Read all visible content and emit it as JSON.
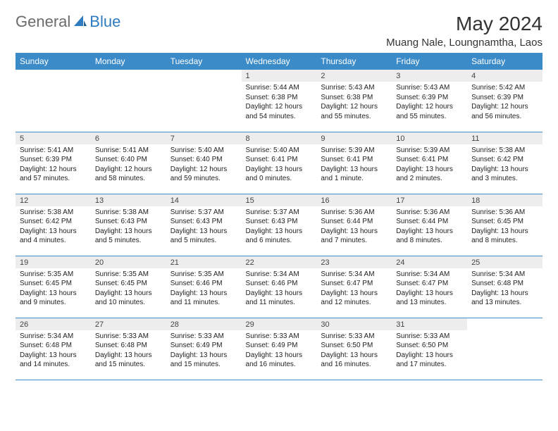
{
  "brand": {
    "general": "General",
    "blue": "Blue"
  },
  "title": "May 2024",
  "location": "Muang Nale, Loungnamtha, Laos",
  "colors": {
    "header_bg": "#3b8bc9",
    "header_fg": "#ffffff",
    "daynum_bg": "#ededed",
    "rule": "#3b8bc9",
    "logo_blue": "#2f7bbf",
    "logo_grey": "#6b6b6b"
  },
  "weekdays": [
    "Sunday",
    "Monday",
    "Tuesday",
    "Wednesday",
    "Thursday",
    "Friday",
    "Saturday"
  ],
  "weeks": [
    [
      null,
      null,
      null,
      {
        "n": "1",
        "sr": "5:44 AM",
        "ss": "6:38 PM",
        "dl": "12 hours and 54 minutes."
      },
      {
        "n": "2",
        "sr": "5:43 AM",
        "ss": "6:38 PM",
        "dl": "12 hours and 55 minutes."
      },
      {
        "n": "3",
        "sr": "5:43 AM",
        "ss": "6:39 PM",
        "dl": "12 hours and 55 minutes."
      },
      {
        "n": "4",
        "sr": "5:42 AM",
        "ss": "6:39 PM",
        "dl": "12 hours and 56 minutes."
      }
    ],
    [
      {
        "n": "5",
        "sr": "5:41 AM",
        "ss": "6:39 PM",
        "dl": "12 hours and 57 minutes."
      },
      {
        "n": "6",
        "sr": "5:41 AM",
        "ss": "6:40 PM",
        "dl": "12 hours and 58 minutes."
      },
      {
        "n": "7",
        "sr": "5:40 AM",
        "ss": "6:40 PM",
        "dl": "12 hours and 59 minutes."
      },
      {
        "n": "8",
        "sr": "5:40 AM",
        "ss": "6:41 PM",
        "dl": "13 hours and 0 minutes."
      },
      {
        "n": "9",
        "sr": "5:39 AM",
        "ss": "6:41 PM",
        "dl": "13 hours and 1 minute."
      },
      {
        "n": "10",
        "sr": "5:39 AM",
        "ss": "6:41 PM",
        "dl": "13 hours and 2 minutes."
      },
      {
        "n": "11",
        "sr": "5:38 AM",
        "ss": "6:42 PM",
        "dl": "13 hours and 3 minutes."
      }
    ],
    [
      {
        "n": "12",
        "sr": "5:38 AM",
        "ss": "6:42 PM",
        "dl": "13 hours and 4 minutes."
      },
      {
        "n": "13",
        "sr": "5:38 AM",
        "ss": "6:43 PM",
        "dl": "13 hours and 5 minutes."
      },
      {
        "n": "14",
        "sr": "5:37 AM",
        "ss": "6:43 PM",
        "dl": "13 hours and 5 minutes."
      },
      {
        "n": "15",
        "sr": "5:37 AM",
        "ss": "6:43 PM",
        "dl": "13 hours and 6 minutes."
      },
      {
        "n": "16",
        "sr": "5:36 AM",
        "ss": "6:44 PM",
        "dl": "13 hours and 7 minutes."
      },
      {
        "n": "17",
        "sr": "5:36 AM",
        "ss": "6:44 PM",
        "dl": "13 hours and 8 minutes."
      },
      {
        "n": "18",
        "sr": "5:36 AM",
        "ss": "6:45 PM",
        "dl": "13 hours and 8 minutes."
      }
    ],
    [
      {
        "n": "19",
        "sr": "5:35 AM",
        "ss": "6:45 PM",
        "dl": "13 hours and 9 minutes."
      },
      {
        "n": "20",
        "sr": "5:35 AM",
        "ss": "6:45 PM",
        "dl": "13 hours and 10 minutes."
      },
      {
        "n": "21",
        "sr": "5:35 AM",
        "ss": "6:46 PM",
        "dl": "13 hours and 11 minutes."
      },
      {
        "n": "22",
        "sr": "5:34 AM",
        "ss": "6:46 PM",
        "dl": "13 hours and 11 minutes."
      },
      {
        "n": "23",
        "sr": "5:34 AM",
        "ss": "6:47 PM",
        "dl": "13 hours and 12 minutes."
      },
      {
        "n": "24",
        "sr": "5:34 AM",
        "ss": "6:47 PM",
        "dl": "13 hours and 13 minutes."
      },
      {
        "n": "25",
        "sr": "5:34 AM",
        "ss": "6:48 PM",
        "dl": "13 hours and 13 minutes."
      }
    ],
    [
      {
        "n": "26",
        "sr": "5:34 AM",
        "ss": "6:48 PM",
        "dl": "13 hours and 14 minutes."
      },
      {
        "n": "27",
        "sr": "5:33 AM",
        "ss": "6:48 PM",
        "dl": "13 hours and 15 minutes."
      },
      {
        "n": "28",
        "sr": "5:33 AM",
        "ss": "6:49 PM",
        "dl": "13 hours and 15 minutes."
      },
      {
        "n": "29",
        "sr": "5:33 AM",
        "ss": "6:49 PM",
        "dl": "13 hours and 16 minutes."
      },
      {
        "n": "30",
        "sr": "5:33 AM",
        "ss": "6:50 PM",
        "dl": "13 hours and 16 minutes."
      },
      {
        "n": "31",
        "sr": "5:33 AM",
        "ss": "6:50 PM",
        "dl": "13 hours and 17 minutes."
      },
      null
    ]
  ],
  "labels": {
    "sunrise": "Sunrise:",
    "sunset": "Sunset:",
    "daylight": "Daylight:"
  }
}
